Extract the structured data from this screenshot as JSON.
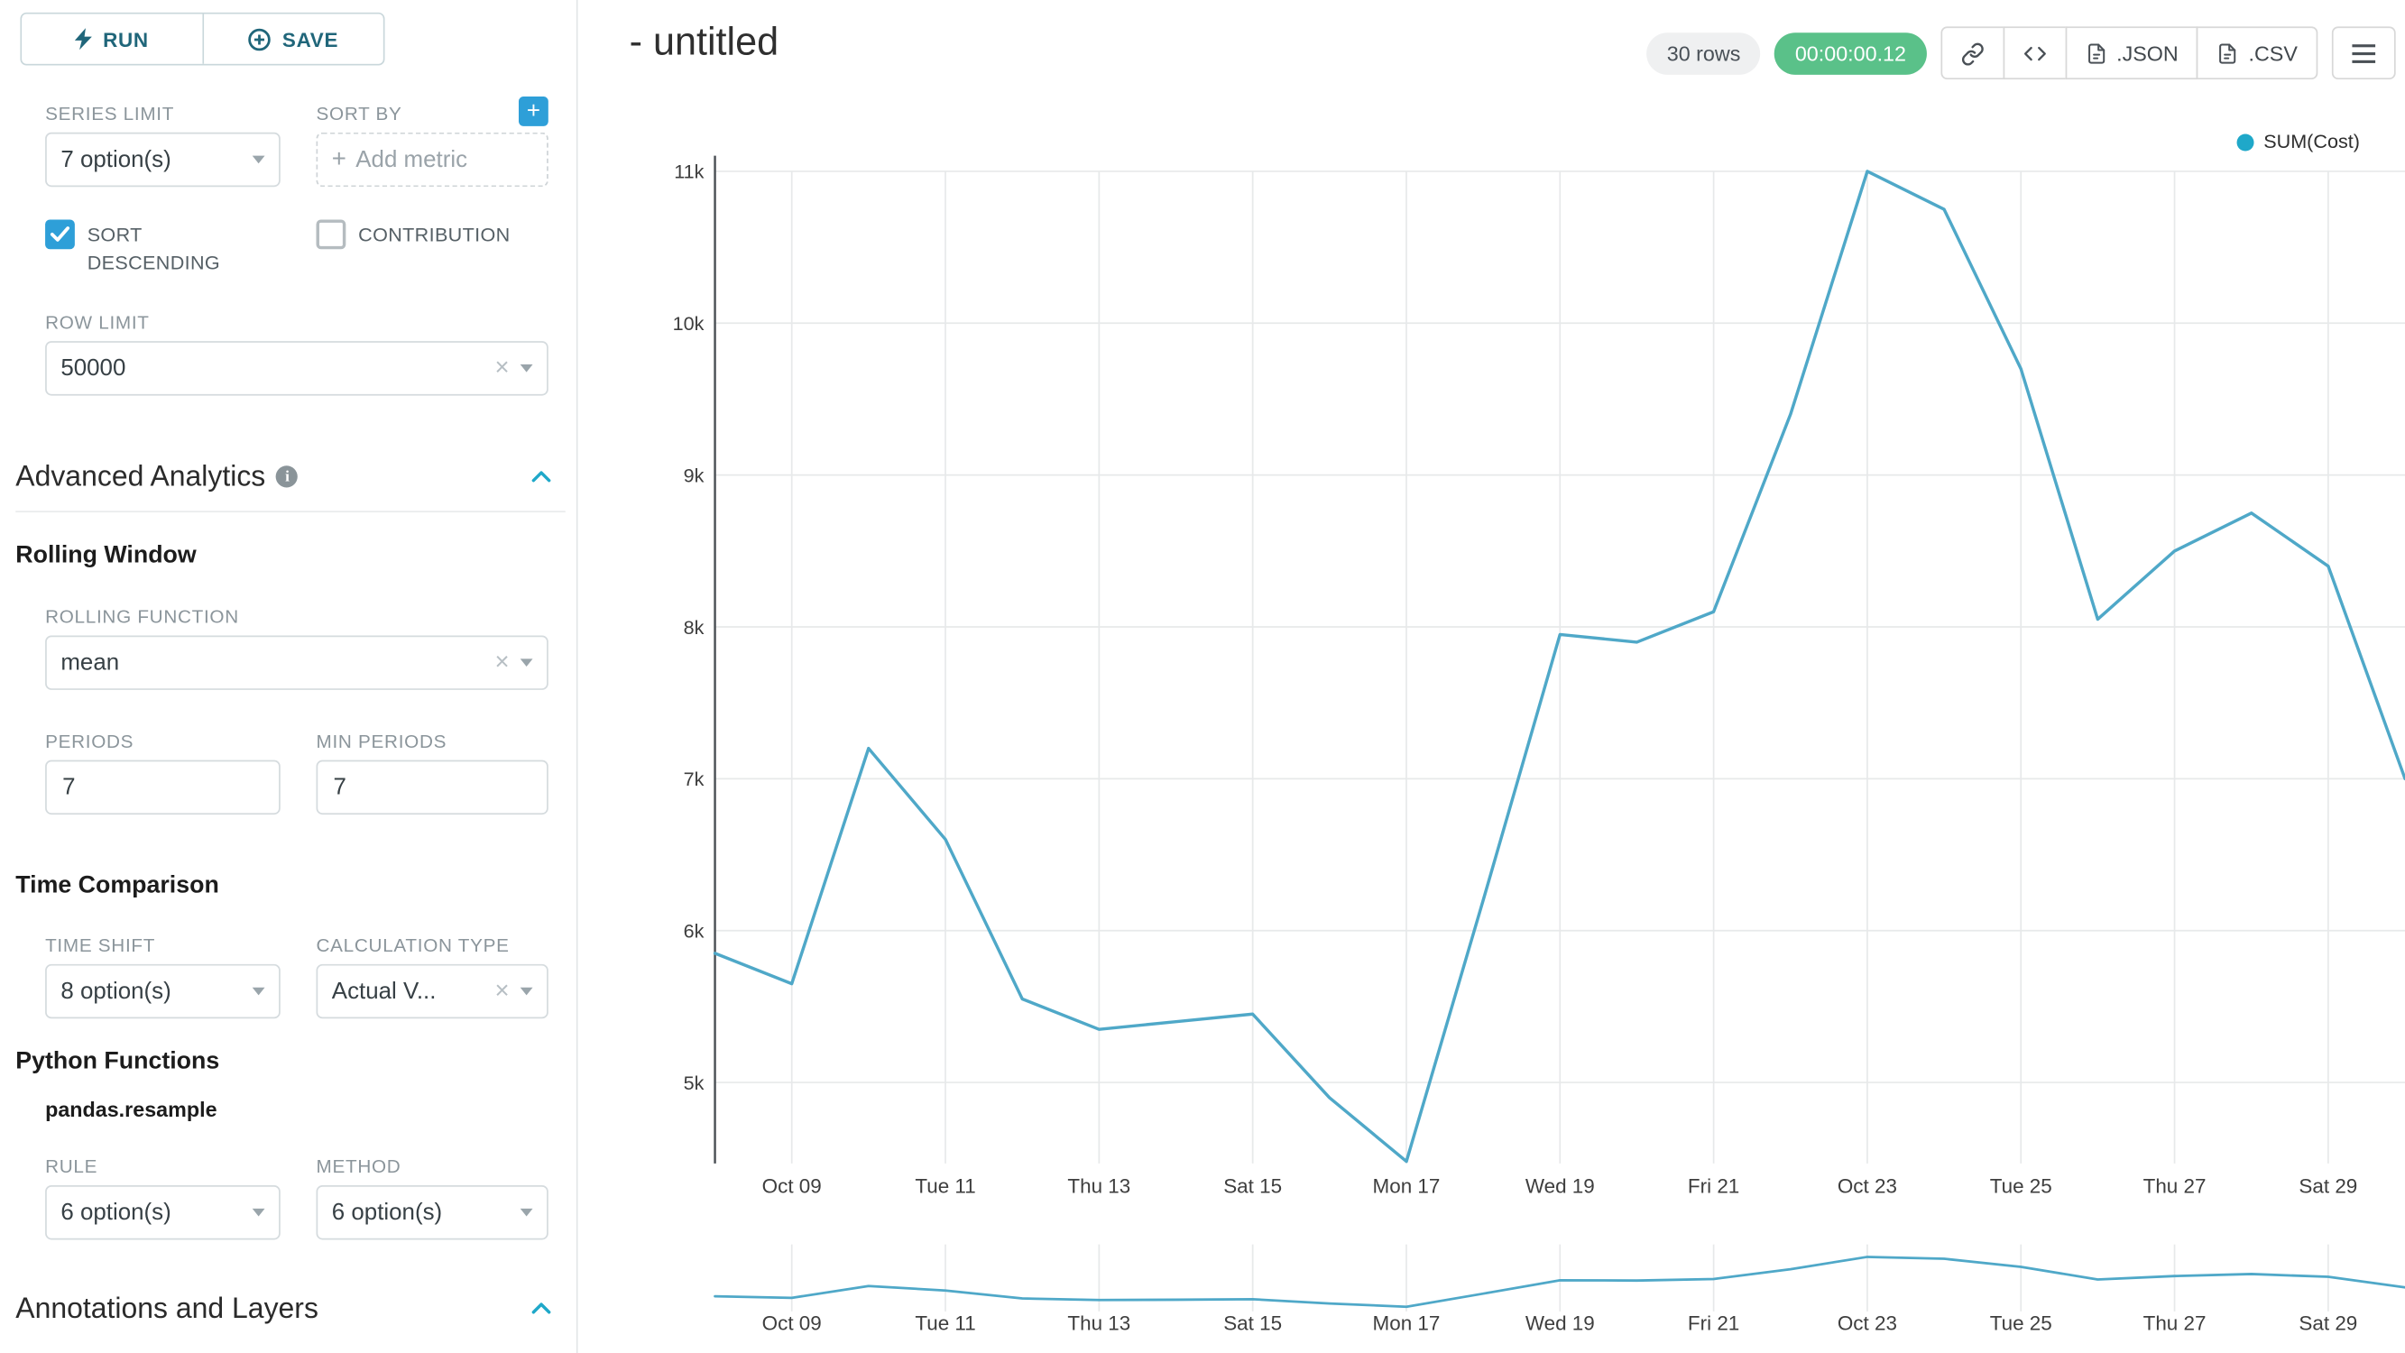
{
  "colors": {
    "chart_line": "#4FA8C8",
    "legend_dot": "#1FA8C9",
    "timer_green": "#5AC189",
    "checkbox_blue": "#2E9FD8",
    "button_teal": "#20667A",
    "collapse_chevron": "#1FA8C9"
  },
  "icons": {
    "clear": "×",
    "plus": "+",
    "info": "i"
  },
  "sidebar": {
    "run_button": {
      "label": "RUN"
    },
    "save_button": {
      "label": "SAVE"
    },
    "series_limit": {
      "label": "SERIES LIMIT",
      "value": "7 option(s)"
    },
    "sort_by": {
      "label": "SORT BY",
      "placeholder": "Add metric"
    },
    "sort_descending": {
      "label": "SORT DESCENDING",
      "checked": true
    },
    "contribution": {
      "label": "CONTRIBUTION",
      "checked": false
    },
    "row_limit": {
      "label": "ROW LIMIT",
      "value": "50000"
    },
    "advanced_analytics_title": "Advanced Analytics",
    "rolling_window": {
      "title": "Rolling Window",
      "rolling_function": {
        "label": "ROLLING FUNCTION",
        "value": "mean"
      },
      "periods": {
        "label": "PERIODS",
        "value": "7"
      },
      "min_periods": {
        "label": "MIN PERIODS",
        "value": "7"
      }
    },
    "time_comparison": {
      "title": "Time Comparison",
      "time_shift": {
        "label": "TIME SHIFT",
        "value": "8 option(s)"
      },
      "calculation_type": {
        "label": "CALCULATION TYPE",
        "value": "Actual V..."
      }
    },
    "python_functions": {
      "title": "Python Functions",
      "function_name": "pandas.resample",
      "rule": {
        "label": "RULE",
        "value": "6 option(s)"
      },
      "method": {
        "label": "METHOD",
        "value": "6 option(s)"
      }
    },
    "annotations_title": "Annotations and Layers"
  },
  "header": {
    "title": "- untitled",
    "rows_badge": "30 rows",
    "timer_badge": "00:00:00.12",
    "json_button": ".JSON",
    "csv_button": ".CSV"
  },
  "chart_data": {
    "type": "line",
    "title": "",
    "legend": [
      "SUM(Cost)"
    ],
    "legend_position": "top-right",
    "grid": true,
    "has_focus_context_minichart": true,
    "x": [
      "Oct 08",
      "Oct 09",
      "Oct 10",
      "Oct 11",
      "Oct 12",
      "Oct 13",
      "Oct 14",
      "Oct 15",
      "Oct 16",
      "Oct 17",
      "Oct 18",
      "Oct 19",
      "Oct 20",
      "Oct 21",
      "Oct 22",
      "Oct 23",
      "Oct 24",
      "Oct 25",
      "Oct 26",
      "Oct 27",
      "Oct 28",
      "Oct 29",
      "Oct 30"
    ],
    "series": [
      {
        "name": "SUM(Cost)",
        "color": "#4FA8C8",
        "values": [
          5850,
          5650,
          7200,
          6600,
          5550,
          5350,
          5400,
          5450,
          4900,
          4480,
          6200,
          7950,
          7900,
          8100,
          9400,
          11000,
          10750,
          9700,
          8050,
          8500,
          8750,
          8400,
          7000
        ]
      }
    ],
    "x_tick_labels": [
      "Oct 09",
      "Tue 11",
      "Thu 13",
      "Sat 15",
      "Mon 17",
      "Wed 19",
      "Fri 21",
      "Oct 23",
      "Tue 25",
      "Thu 27",
      "Sat 29"
    ],
    "y_ticks": [
      5000,
      6000,
      7000,
      8000,
      9000,
      10000,
      11000
    ],
    "y_tick_labels": [
      "5k",
      "6k",
      "7k",
      "8k",
      "9k",
      "10k",
      "11k"
    ],
    "ylim": [
      4450,
      11000
    ]
  }
}
